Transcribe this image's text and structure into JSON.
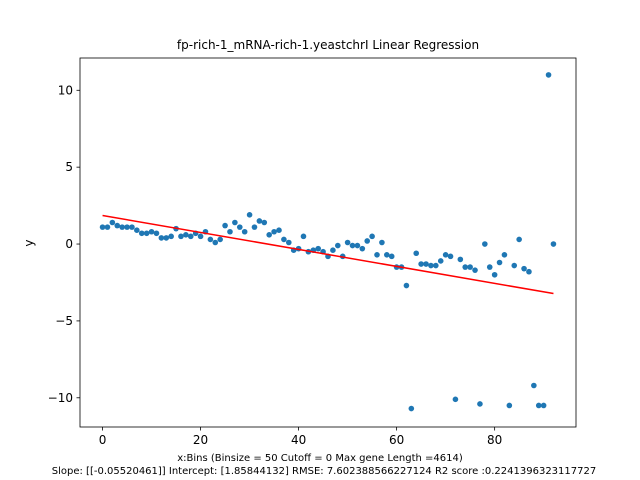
{
  "chart_data": {
    "type": "scatter",
    "title": "fp-rich-1_mRNA-rich-1.yeastchrI Linear Regression",
    "xlabel": "x:Bins  (Binsize = 50 Cutoff = 0 Max gene Length =4614)",
    "ylabel": "y",
    "caption": "Slope: [[-0.05520461]] Intercept: [1.85844132] RMSE: 7.602388566227124 R2 score :0.2241396323117727",
    "xlim": [
      -4.6,
      96.6
    ],
    "ylim": [
      -11.9,
      12.1
    ],
    "x_ticks": [
      0,
      20,
      40,
      60,
      80
    ],
    "y_ticks": [
      -10,
      -5,
      0,
      5,
      10
    ],
    "grid": false,
    "series": [
      {
        "color": "#1f77b4",
        "x": [
          0,
          1,
          2,
          3,
          4,
          5,
          6,
          7,
          8,
          9,
          10,
          11,
          12,
          13,
          14,
          15,
          16,
          17,
          18,
          19,
          20,
          21,
          22,
          23,
          24,
          25,
          26,
          27,
          28,
          29,
          30,
          31,
          32,
          33,
          34,
          35,
          36,
          37,
          38,
          39,
          40,
          41,
          42,
          43,
          44,
          45,
          46,
          47,
          48,
          49,
          50,
          51,
          52,
          53,
          54,
          55,
          56,
          57,
          58,
          59,
          60,
          61,
          62,
          63,
          64,
          65,
          66,
          67,
          68,
          69,
          70,
          71,
          72,
          73,
          74,
          75,
          76,
          77,
          78,
          79,
          80,
          81,
          82,
          83,
          84,
          85,
          86,
          87,
          88,
          89,
          90,
          91,
          92
        ],
        "y": [
          1.1,
          1.1,
          1.4,
          1.2,
          1.1,
          1.1,
          1.1,
          0.9,
          0.7,
          0.7,
          0.8,
          0.7,
          0.4,
          0.4,
          0.5,
          1.0,
          0.5,
          0.6,
          0.5,
          0.7,
          0.5,
          0.8,
          0.3,
          0.1,
          0.3,
          1.2,
          0.8,
          1.4,
          1.1,
          0.8,
          1.9,
          1.1,
          1.5,
          1.4,
          0.6,
          0.8,
          0.9,
          0.3,
          0.1,
          -0.4,
          -0.3,
          0.5,
          -0.5,
          -0.4,
          -0.3,
          -0.5,
          -0.8,
          -0.4,
          -0.1,
          -0.8,
          0.1,
          -0.1,
          -0.1,
          -0.3,
          0.2,
          0.5,
          -0.7,
          0.1,
          -0.7,
          -0.8,
          -1.5,
          -1.5,
          -2.7,
          -10.7,
          -0.6,
          -1.3,
          -1.3,
          -1.4,
          -1.4,
          -1.1,
          -0.7,
          -0.8,
          -10.1,
          -1.0,
          -1.5,
          -1.5,
          -1.7,
          -10.4,
          0.0,
          -1.5,
          -2.0,
          -1.2,
          -0.7,
          -10.5,
          -1.4,
          0.3,
          -1.6,
          -1.8,
          -9.2,
          -10.5,
          -10.5,
          11.0,
          0.0
        ]
      }
    ],
    "regression": {
      "color": "#ff0000",
      "slope": -0.05520461,
      "intercept": 1.85844132,
      "x_start": 0,
      "x_end": 92
    }
  }
}
